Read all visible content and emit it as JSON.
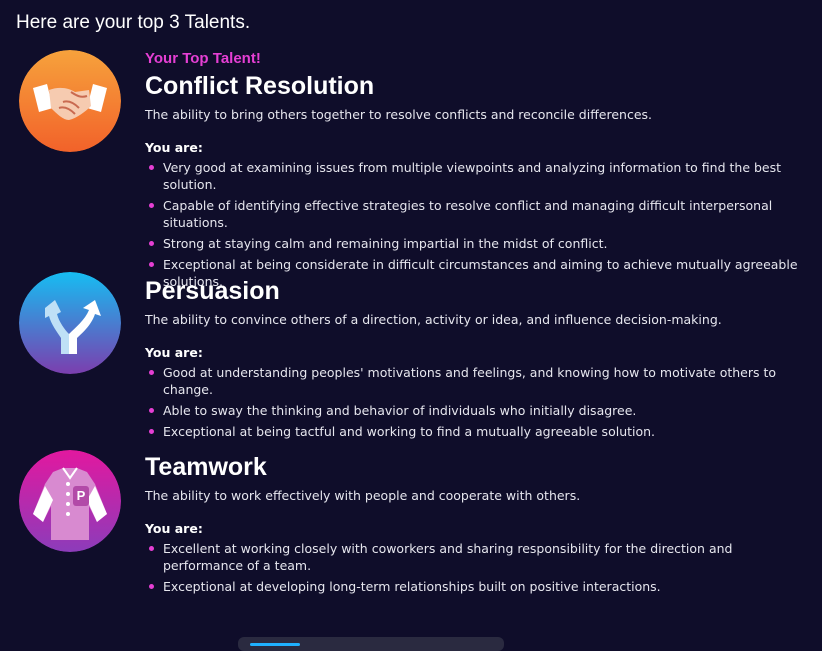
{
  "header": {
    "title": "Here are your top 3 Talents."
  },
  "colors": {
    "background": "#0f0d2a",
    "accent_pink": "#e53fd4",
    "orange_gradient": [
      "#f6a23c",
      "#f26a2a"
    ],
    "blue_gradient": [
      "#18b8f0",
      "#7a3fb0"
    ],
    "magenta_gradient": [
      "#e01ea0",
      "#8a3cb8"
    ]
  },
  "talents": [
    {
      "badge": "Your Top Talent!",
      "icon": "handshake-icon",
      "title": "Conflict Resolution",
      "description": "The ability to bring others together to resolve conflicts and reconcile differences.",
      "you_are_label": "You are:",
      "bullets": [
        "Very good at examining issues from multiple viewpoints and analyzing information to find the best solution.",
        "Capable of identifying effective strategies to resolve conflict and managing difficult interpersonal situations.",
        "Strong at staying calm and remaining impartial in the midst of conflict.",
        "Exceptional at being considerate in difficult circumstances and aiming to achieve mutually agreeable solutions."
      ]
    },
    {
      "icon": "fork-arrows-icon",
      "title": "Persuasion",
      "description": "The ability to convince others of a direction, activity or idea, and influence decision-making.",
      "you_are_label": "You are:",
      "bullets": [
        "Good at understanding peoples' motivations and feelings, and knowing how to motivate others to change.",
        "Able to sway the thinking and behavior of individuals who initially disagree.",
        "Exceptional at being tactful and working to find a mutually agreeable solution."
      ]
    },
    {
      "icon": "team-jacket-icon",
      "icon_letter": "P",
      "title": "Teamwork",
      "description": "The ability to work effectively with people and cooperate with others.",
      "you_are_label": "You are:",
      "bullets": [
        "Excellent at working closely with coworkers and sharing responsibility for the direction and performance of a team.",
        "Exceptional at developing long-term relationships built on positive interactions."
      ]
    }
  ]
}
